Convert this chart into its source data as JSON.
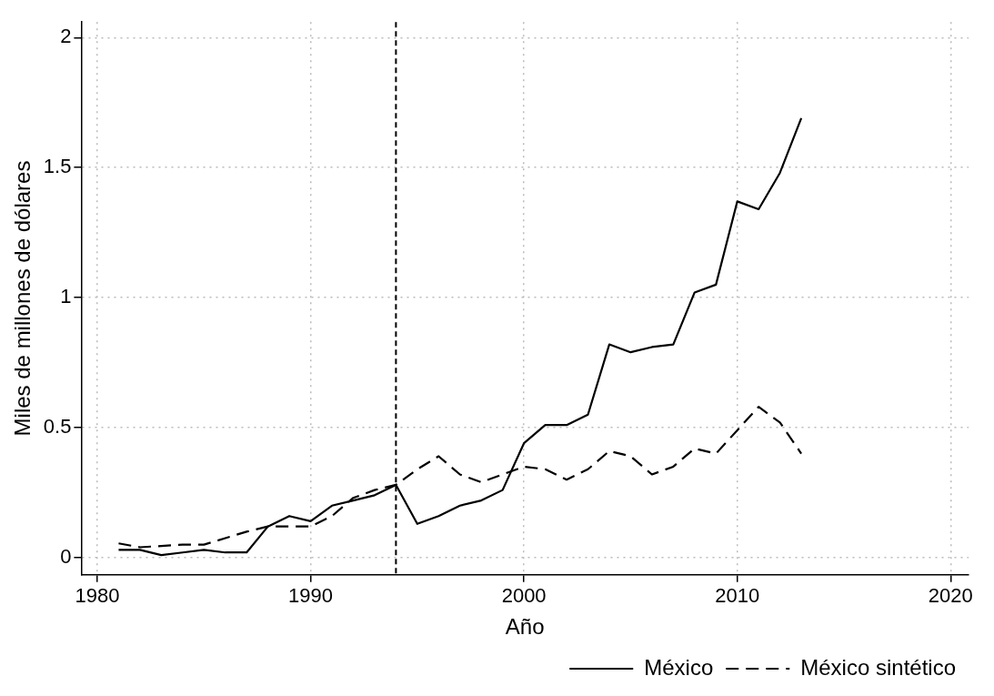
{
  "chart_data": {
    "type": "line",
    "xlabel": "Año",
    "ylabel": "Miles de millones de dólares",
    "x": [
      1981,
      1982,
      1983,
      1984,
      1985,
      1986,
      1987,
      1988,
      1989,
      1990,
      1991,
      1992,
      1993,
      1994,
      1995,
      1996,
      1997,
      1998,
      1999,
      2000,
      2001,
      2002,
      2003,
      2004,
      2005,
      2006,
      2007,
      2008,
      2009,
      2010,
      2011,
      2012,
      2013
    ],
    "series": [
      {
        "name": "México",
        "color": "#000000",
        "line_style": "solid",
        "values": [
          0.03,
          0.03,
          0.01,
          0.02,
          0.03,
          0.02,
          0.02,
          0.12,
          0.16,
          0.14,
          0.2,
          0.22,
          0.24,
          0.28,
          0.13,
          0.16,
          0.2,
          0.22,
          0.26,
          0.44,
          0.51,
          0.51,
          0.55,
          0.82,
          0.79,
          0.81,
          0.82,
          1.02,
          1.05,
          1.37,
          1.34,
          1.48,
          1.69
        ]
      },
      {
        "name": "México sintético",
        "color": "#000000",
        "line_style": "dashed",
        "values": [
          0.055,
          0.04,
          0.045,
          0.05,
          0.05,
          0.075,
          0.1,
          0.12,
          0.12,
          0.12,
          0.16,
          0.23,
          0.26,
          0.28,
          0.34,
          0.39,
          0.32,
          0.29,
          0.32,
          0.35,
          0.34,
          0.3,
          0.34,
          0.41,
          0.39,
          0.32,
          0.35,
          0.42,
          0.4,
          0.49,
          0.58,
          0.52,
          0.4
        ]
      }
    ],
    "xlim": [
      1979.25,
      2020.84
    ],
    "xticks": [
      1980,
      1990,
      2000,
      2010,
      2020
    ],
    "ylim": [
      -0.066,
      2.06
    ],
    "yticks": [
      0,
      0.5,
      1,
      1.5,
      2
    ],
    "ref_lines": [
      {
        "axis": "x",
        "value": 1994,
        "color": "#000000",
        "line_style": "dashed"
      }
    ],
    "grid": true,
    "legend": "bottom",
    "marker": "none"
  }
}
